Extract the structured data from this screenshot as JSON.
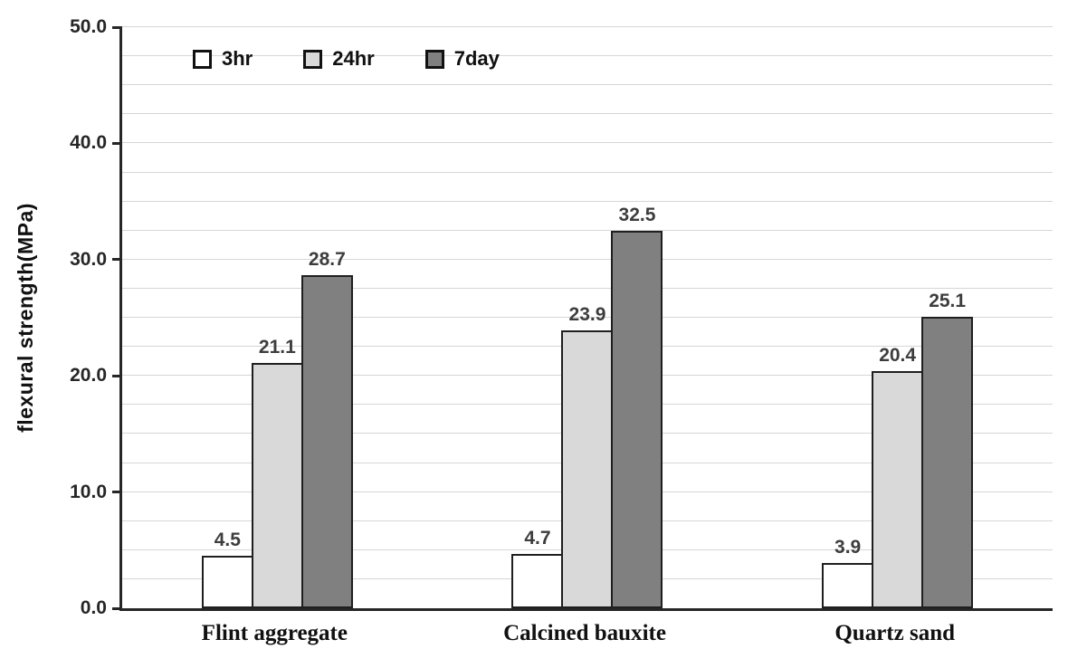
{
  "chart_data": {
    "type": "bar",
    "title": "",
    "xlabel": "",
    "ylabel": "flexural  strength(MPa)",
    "ylim": [
      0,
      50
    ],
    "ytick_step": 10,
    "ytick_format_decimals": 1,
    "minor_grid_step": 2.5,
    "grid": true,
    "legend_position": "top-left",
    "categories": [
      "Flint aggregate",
      "Calcined bauxite",
      "Quartz sand"
    ],
    "series": [
      {
        "name": "3hr",
        "color": "#ffffff",
        "values": [
          4.5,
          4.7,
          3.9
        ]
      },
      {
        "name": "24hr",
        "color": "#d9d9d9",
        "values": [
          21.1,
          23.9,
          20.4
        ]
      },
      {
        "name": "7day",
        "color": "#808080",
        "values": [
          28.7,
          32.5,
          25.1
        ]
      }
    ],
    "bar_border_color": "#1f1f1f",
    "value_label_decimals": 1
  }
}
